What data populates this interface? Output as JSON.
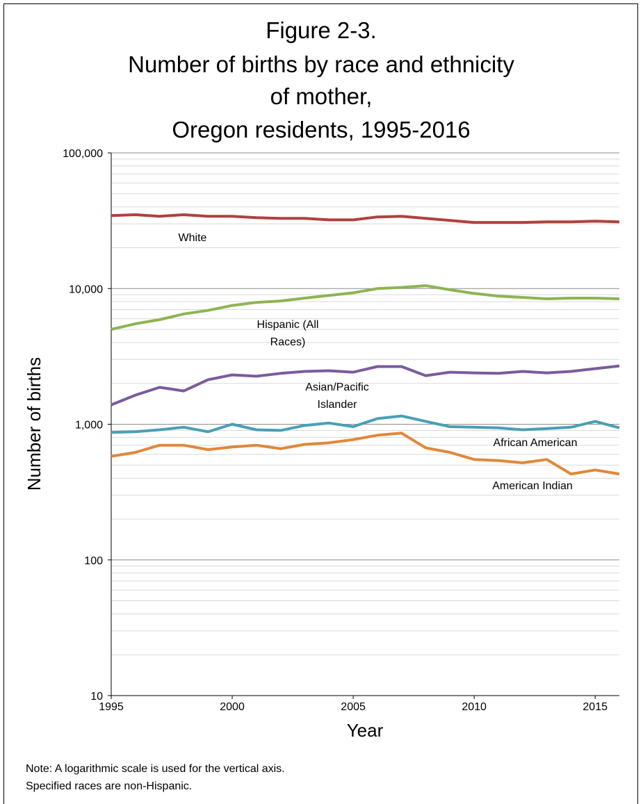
{
  "chart_data": {
    "type": "line",
    "title": [
      "Figure 2-3.",
      "Number of births by race and ethnicity",
      "of mother,",
      "Oregon residents, 1995-2016"
    ],
    "x_label": "Year",
    "y_label": "Number of births",
    "log_scale": true,
    "grid": true,
    "x": [
      1995,
      1996,
      1997,
      1998,
      1999,
      2000,
      2001,
      2002,
      2003,
      2004,
      2005,
      2006,
      2007,
      2008,
      2009,
      2010,
      2011,
      2012,
      2013,
      2014,
      2015,
      2016
    ],
    "xlim": [
      1995,
      2016
    ],
    "xticks": [
      1995,
      2000,
      2005,
      2010,
      2015
    ],
    "ylim": [
      10,
      100000
    ],
    "yticks": [
      10,
      100,
      {
        "value": 1000,
        "label": "1,000"
      },
      {
        "value": 10000,
        "label": "10,000"
      },
      {
        "value": 100000,
        "label": "100,000"
      }
    ],
    "series": [
      {
        "name": "White",
        "color": "#b0413e",
        "values": [
          34500,
          35000,
          34100,
          35000,
          34100,
          34100,
          33300,
          32900,
          32900,
          32100,
          32100,
          33700,
          34100,
          32900,
          31800,
          30700,
          30700,
          30700,
          31000,
          31000,
          31400,
          31000
        ]
      },
      {
        "name": "Hispanic (All Races)",
        "color": "#8db453",
        "values": [
          5000,
          5500,
          5900,
          6500,
          6900,
          7500,
          7900,
          8100,
          8500,
          8900,
          9300,
          10000,
          10200,
          10500,
          9800,
          9200,
          8800,
          8600,
          8400,
          8500,
          8500,
          8400
        ]
      },
      {
        "name": "Asian/Pacific Islander",
        "color": "#7b5b9e",
        "values": [
          1390,
          1640,
          1870,
          1760,
          2130,
          2310,
          2260,
          2370,
          2450,
          2480,
          2420,
          2660,
          2660,
          2280,
          2420,
          2390,
          2370,
          2450,
          2390,
          2450,
          2570,
          2690
        ]
      },
      {
        "name": "African American",
        "color": "#4a9fb5",
        "values": [
          870,
          880,
          910,
          950,
          880,
          1000,
          910,
          900,
          980,
          1020,
          960,
          1100,
          1150,
          1050,
          960,
          950,
          940,
          910,
          930,
          950,
          1050,
          940
        ]
      },
      {
        "name": "American Indian",
        "color": "#e0883a",
        "values": [
          580,
          620,
          700,
          700,
          650,
          680,
          700,
          660,
          710,
          730,
          770,
          830,
          860,
          670,
          620,
          550,
          540,
          520,
          550,
          430,
          460,
          430
        ]
      }
    ],
    "note": [
      "Note: A logarithmic scale is used for the vertical axis.",
      "Specified races are non-Hispanic."
    ]
  }
}
